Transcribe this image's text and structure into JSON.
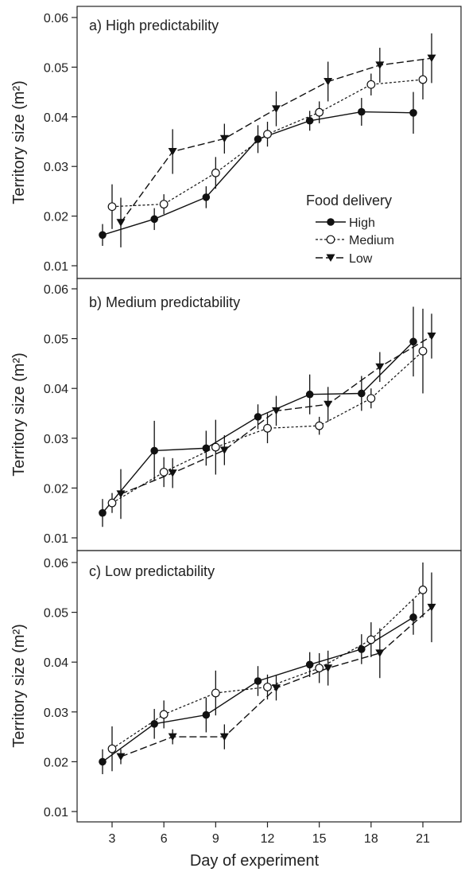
{
  "chart_data": [
    {
      "type": "line",
      "title": "a) High predictability",
      "xlabel": "",
      "ylabel": "Territory size (m²)",
      "ylim": [
        0.01,
        0.06
      ],
      "yticks": [
        "0.01",
        "0.02",
        "0.03",
        "0.04",
        "0.05",
        "0.06"
      ],
      "legend": {
        "title": "Food delivery",
        "placement": "middle-right",
        "entries": [
          "High",
          "Medium",
          "Low"
        ]
      },
      "series": [
        {
          "name": "High",
          "x": [
            3,
            6,
            9,
            12,
            15,
            18,
            21
          ],
          "y": [
            0.0162,
            0.0194,
            0.0238,
            0.0355,
            0.0392,
            0.041,
            0.0408
          ],
          "err": [
            0.0022,
            0.0022,
            0.0022,
            0.0028,
            0.002,
            0.0028,
            0.0042
          ]
        },
        {
          "name": "Medium",
          "x": [
            3,
            6,
            9,
            12,
            15,
            18,
            21
          ],
          "y": [
            0.0219,
            0.0224,
            0.0287,
            0.0365,
            0.0409,
            0.0465,
            0.0475
          ],
          "err": [
            0.0045,
            0.002,
            0.0032,
            0.0025,
            0.0022,
            0.0022,
            0.004
          ]
        },
        {
          "name": "Low",
          "x": [
            3,
            6,
            9,
            12,
            15,
            18,
            21
          ],
          "y": [
            0.0187,
            0.033,
            0.0356,
            0.0416,
            0.0471,
            0.0504,
            0.0518
          ],
          "err": [
            0.005,
            0.0045,
            0.003,
            0.0035,
            0.004,
            0.0035,
            0.005
          ]
        }
      ]
    },
    {
      "type": "line",
      "title": "b) Medium predictability",
      "xlabel": "",
      "ylabel": "Territory size (m²)",
      "ylim": [
        0.01,
        0.06
      ],
      "yticks": [
        "0.01",
        "0.02",
        "0.03",
        "0.04",
        "0.05",
        "0.06"
      ],
      "series": [
        {
          "name": "High",
          "x": [
            3,
            6,
            9,
            12,
            15,
            18,
            21
          ],
          "y": [
            0.015,
            0.0275,
            0.028,
            0.0343,
            0.0388,
            0.039,
            0.0494
          ],
          "err": [
            0.0028,
            0.006,
            0.0035,
            0.0025,
            0.004,
            0.0035,
            0.007
          ]
        },
        {
          "name": "Medium",
          "x": [
            3,
            6,
            9,
            12,
            15,
            18,
            21
          ],
          "y": [
            0.017,
            0.0232,
            0.0282,
            0.032,
            0.0325,
            0.038,
            0.0475
          ],
          "err": [
            0.002,
            0.003,
            0.0055,
            0.003,
            0.0018,
            0.002,
            0.0085
          ]
        },
        {
          "name": "Low",
          "x": [
            3,
            6,
            9,
            12,
            15,
            18,
            21
          ],
          "y": [
            0.0188,
            0.023,
            0.0276,
            0.0355,
            0.0368,
            0.0443,
            0.0505
          ],
          "err": [
            0.005,
            0.003,
            0.003,
            0.003,
            0.0035,
            0.003,
            0.0045
          ]
        }
      ]
    },
    {
      "type": "line",
      "title": "c) Low predictability",
      "xlabel": "Day of experiment",
      "ylabel": "Territory size (m²)",
      "ylim": [
        0.01,
        0.06
      ],
      "yticks": [
        "0.01",
        "0.02",
        "0.03",
        "0.04",
        "0.05",
        "0.06"
      ],
      "xticks": [
        "3",
        "6",
        "9",
        "12",
        "15",
        "18",
        "21"
      ],
      "series": [
        {
          "name": "High",
          "x": [
            3,
            6,
            9,
            12,
            15,
            18,
            21
          ],
          "y": [
            0.02,
            0.0276,
            0.0294,
            0.0362,
            0.0395,
            0.0426,
            0.049
          ],
          "err": [
            0.0025,
            0.003,
            0.0035,
            0.003,
            0.0025,
            0.003,
            0.0035
          ]
        },
        {
          "name": "Medium",
          "x": [
            3,
            6,
            9,
            12,
            15,
            18,
            21
          ],
          "y": [
            0.0226,
            0.0295,
            0.0338,
            0.035,
            0.0388,
            0.0445,
            0.0545
          ],
          "err": [
            0.0045,
            0.0028,
            0.0045,
            0.0025,
            0.003,
            0.0035,
            0.0055
          ]
        },
        {
          "name": "Low",
          "x": [
            3,
            6,
            9,
            12,
            15,
            18,
            21
          ],
          "y": [
            0.021,
            0.025,
            0.025,
            0.0348,
            0.0388,
            0.0418,
            0.051
          ],
          "err": [
            0.0015,
            0.0015,
            0.0025,
            0.0025,
            0.0035,
            0.005,
            0.007
          ]
        }
      ]
    }
  ]
}
